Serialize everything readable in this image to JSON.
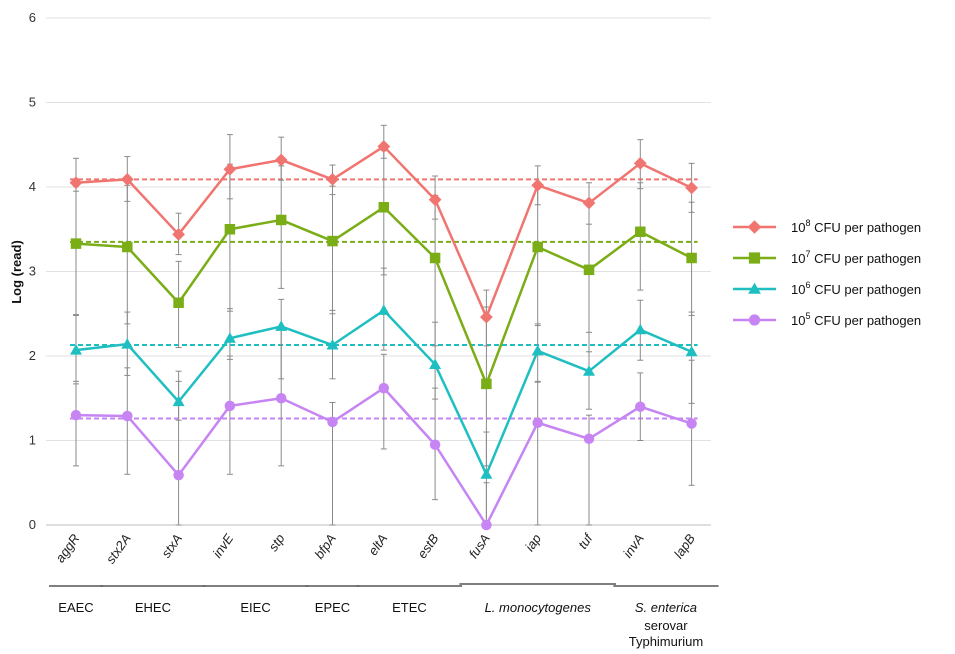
{
  "chart_data": {
    "type": "line",
    "title": "",
    "ylabel": "Log (read)",
    "ylim": [
      0,
      6
    ],
    "yticks": [
      "0",
      "1",
      "2",
      "3",
      "4",
      "5",
      "6"
    ],
    "categories": [
      "aggR",
      "stx2A",
      "stxA",
      "invE",
      "stp",
      "bfpA",
      "eltA",
      "estB",
      "fusA",
      "iap",
      "tuf",
      "invA",
      "lapB"
    ],
    "grid": "horizontal",
    "legend_position": "right",
    "groups": [
      {
        "label": "EAEC",
        "from": 0,
        "to": 0
      },
      {
        "label": "EHEC",
        "from": 1,
        "to": 2
      },
      {
        "label": "EIEC",
        "from": 3,
        "to": 4
      },
      {
        "label": "EPEC",
        "from": 5,
        "to": 5
      },
      {
        "label": "ETEC",
        "from": 6,
        "to": 7
      },
      {
        "label": "L. monocytogenes",
        "italic": true,
        "from": 8,
        "to": 10
      },
      {
        "label": "S. enterica",
        "italic": true,
        "extra": [
          "serovar",
          "Typhimurium"
        ],
        "from": 11,
        "to": 12
      }
    ],
    "series": [
      {
        "name_base": "10",
        "name_sup": "8",
        "name_rest": " CFU per pathogen",
        "color": "#f07470",
        "marker": "diamond",
        "values": [
          4.05,
          4.09,
          3.44,
          4.21,
          4.32,
          4.09,
          4.48,
          3.85,
          2.46,
          4.02,
          3.81,
          4.28,
          3.99
        ],
        "err_low": [
          3.95,
          3.83,
          3.2,
          3.86,
          4.08,
          3.91,
          4.34,
          3.62,
          2.12,
          3.79,
          3.56,
          3.98,
          3.7
        ],
        "err_high": [
          4.34,
          4.36,
          3.69,
          4.62,
          4.59,
          4.26,
          4.73,
          4.13,
          2.78,
          4.25,
          4.05,
          4.56,
          4.28
        ],
        "mean": 4.09
      },
      {
        "name_base": "10",
        "name_sup": "7",
        "name_rest": " CFU per pathogen",
        "color": "#7aad16",
        "marker": "square",
        "values": [
          3.33,
          3.29,
          2.63,
          3.5,
          3.61,
          3.36,
          3.76,
          3.16,
          1.67,
          3.29,
          3.02,
          3.47,
          3.16
        ],
        "err_low": [
          2.49,
          2.38,
          2.1,
          2.53,
          2.8,
          2.5,
          2.96,
          2.12,
          0.7,
          2.36,
          2.05,
          2.78,
          2.48
        ],
        "err_high": [
          4.01,
          4.02,
          3.12,
          4.27,
          4.25,
          4.01,
          4.43,
          3.9,
          2.58,
          3.99,
          3.81,
          4.05,
          3.82
        ],
        "mean": 3.35
      },
      {
        "name_base": "10",
        "name_sup": "6",
        "name_rest": " CFU per pathogen",
        "color": "#1fbfc1",
        "marker": "triangle",
        "values": [
          2.07,
          2.14,
          1.46,
          2.21,
          2.35,
          2.13,
          2.54,
          1.9,
          0.6,
          2.06,
          1.82,
          2.31,
          2.05
        ],
        "err_low": [
          1.67,
          1.77,
          1.24,
          1.96,
          1.73,
          1.73,
          2.07,
          1.49,
          0.0,
          1.69,
          1.37,
          1.95,
          1.44
        ],
        "err_high": [
          2.48,
          2.52,
          1.7,
          2.56,
          2.67,
          2.54,
          3.04,
          2.4,
          1.1,
          2.38,
          2.28,
          2.66,
          2.52
        ],
        "mean": 2.13
      },
      {
        "name_base": "10",
        "name_sup": "5",
        "name_rest": " CFU per pathogen",
        "color": "#c685f2",
        "marker": "circle",
        "values": [
          1.3,
          1.29,
          0.59,
          1.41,
          1.5,
          1.22,
          1.62,
          0.95,
          0.0,
          1.21,
          1.02,
          1.4,
          1.2
        ],
        "err_low": [
          0.7,
          0.6,
          0.0,
          0.6,
          0.7,
          0.0,
          0.9,
          0.3,
          0.0,
          0.0,
          0.0,
          1.0,
          0.47
        ],
        "err_high": [
          1.7,
          1.86,
          1.82,
          2.0,
          2.32,
          1.45,
          2.02,
          1.62,
          0.5,
          1.7,
          1.3,
          1.8,
          1.95
        ],
        "mean": 1.26
      }
    ]
  }
}
